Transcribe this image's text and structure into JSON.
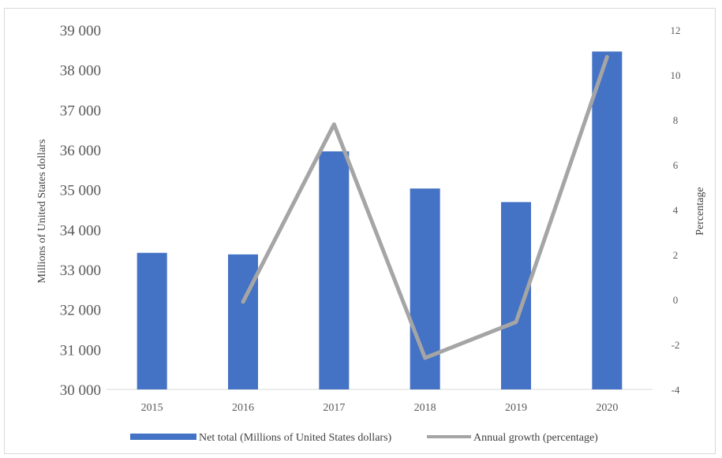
{
  "chart_data": {
    "type": "bar",
    "title": "",
    "categories": [
      "2015",
      "2016",
      "2017",
      "2018",
      "2019",
      "2020"
    ],
    "series": [
      {
        "name": "Net total (Millions of United States dollars)",
        "type": "bar",
        "axis": "left",
        "color": "#4472c4",
        "values": [
          33420,
          33380,
          35960,
          35030,
          34690,
          38460
        ]
      },
      {
        "name": "Annual growth (percentage)",
        "type": "line",
        "axis": "right",
        "color": "#a5a5a5",
        "values": [
          null,
          -0.1,
          7.8,
          -2.6,
          -1.0,
          10.8
        ]
      }
    ],
    "ylabel": "Millions of United States dollars",
    "ylim": [
      30000,
      39000
    ],
    "yticks": [
      "30 000",
      "31 000",
      "32 000",
      "33 000",
      "34 000",
      "35 000",
      "36 000",
      "37 000",
      "38 000",
      "39 000"
    ],
    "y2label": "Percentage",
    "y2lim": [
      -4,
      12
    ],
    "y2ticks": [
      "-4",
      "-2",
      "0",
      "2",
      "4",
      "6",
      "8",
      "10",
      "12"
    ],
    "grid": false,
    "legend": "bottom"
  }
}
